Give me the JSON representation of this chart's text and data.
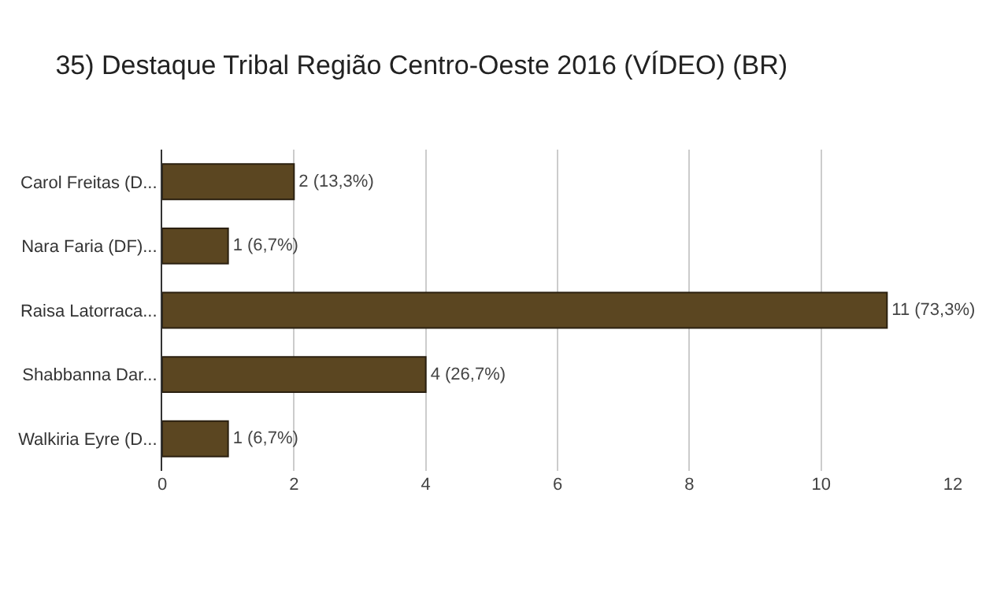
{
  "chart_data": {
    "type": "bar",
    "orientation": "horizontal",
    "title": "35) Destaque Tribal Região Centro-Oeste 2016 (VÍDEO) (BR)",
    "categories": [
      "Carol Freitas (D...",
      "Nara Faria (DF)...",
      "Raisa Latorraca...",
      "Shabbanna Dar...",
      "Walkiria Eyre (D..."
    ],
    "values": [
      2,
      1,
      11,
      4,
      1
    ],
    "value_labels": [
      "2 (13,3%)",
      "1 (6,7%)",
      "11 (73,3%)",
      "4 (26,7%)",
      "1 (6,7%)"
    ],
    "color": "#5b4621",
    "xlim": [
      0,
      12
    ],
    "xticks": [
      0,
      2,
      4,
      6,
      8,
      10,
      12
    ],
    "grid": "x"
  }
}
